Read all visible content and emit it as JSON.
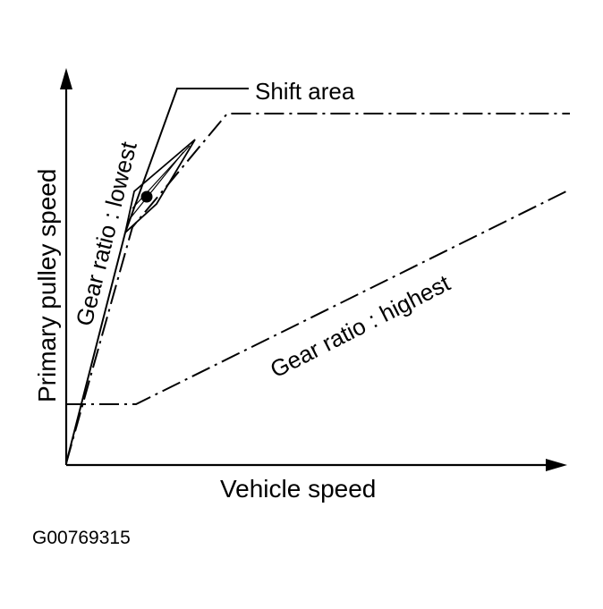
{
  "diagram": {
    "y_axis_label": "Primary pulley speed",
    "x_axis_label": "Vehicle speed",
    "lowest_ratio_label": "Gear ratio : lowest",
    "highest_ratio_label": "Gear ratio : highest",
    "shift_area_label": "Shift area",
    "figure_code": "G00769315",
    "line_color": "#000000",
    "background_color": "#ffffff"
  }
}
